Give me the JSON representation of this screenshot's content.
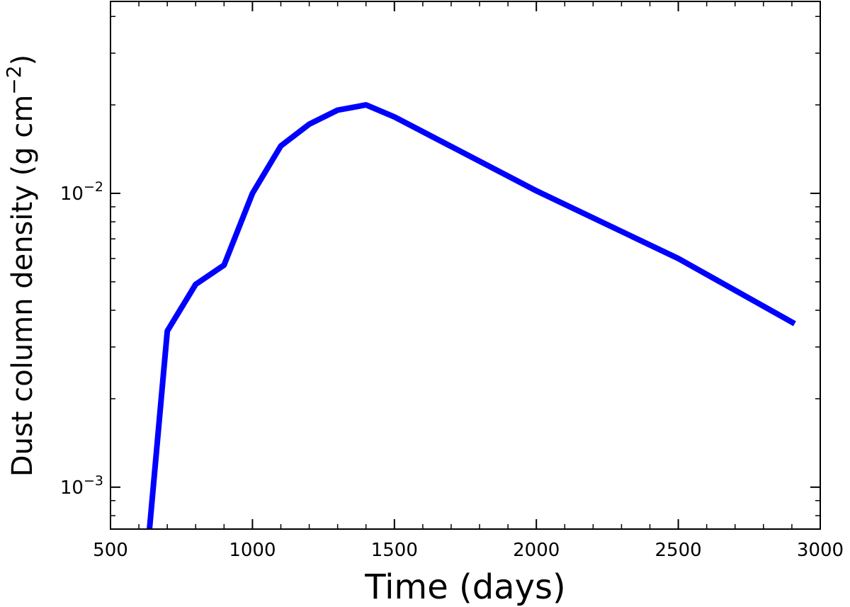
{
  "chart_data": {
    "type": "line",
    "title": "",
    "xlabel": "Time (days)",
    "ylabel_main": "Dust column density (g cm",
    "ylabel_exp": "−2",
    "ylabel_close": ")",
    "xlim": [
      500,
      3000
    ],
    "ylim": [
      0.00072,
      0.045
    ],
    "yscale": "log",
    "grid": false,
    "legend": "none",
    "line_color": "#0000ff",
    "x_ticks": [
      {
        "value": 500,
        "label": "500"
      },
      {
        "value": 1000,
        "label": "1000"
      },
      {
        "value": 1500,
        "label": "1500"
      },
      {
        "value": 2000,
        "label": "2000"
      },
      {
        "value": 2500,
        "label": "2500"
      },
      {
        "value": 3000,
        "label": "3000"
      }
    ],
    "y_ticks": [
      {
        "value": 0.001,
        "base": "10",
        "exp": "−3"
      },
      {
        "value": 0.01,
        "base": "10",
        "exp": "−2"
      }
    ],
    "series": [
      {
        "x": [
          630,
          700,
          800,
          900,
          1000,
          1100,
          1200,
          1300,
          1400,
          1500,
          2000,
          2500,
          2910
        ],
        "values": [
          0.0006,
          0.0034,
          0.0049,
          0.0057,
          0.01,
          0.0145,
          0.0172,
          0.0192,
          0.02,
          0.0182,
          0.0102,
          0.006,
          0.0036
        ]
      }
    ]
  }
}
